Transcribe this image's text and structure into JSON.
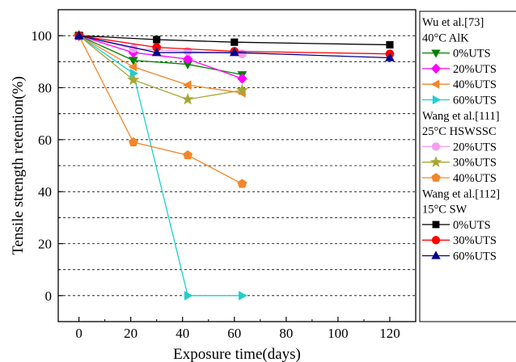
{
  "chart_data": {
    "type": "line",
    "xlabel": "Exposure time(days)",
    "ylabel": "Tensile strength retention(%)",
    "xlim": [
      -8,
      130
    ],
    "ylim": [
      -10,
      110
    ],
    "xticks": [
      0,
      20,
      40,
      60,
      80,
      100,
      120
    ],
    "yticks": [
      0,
      20,
      40,
      60,
      80,
      100
    ],
    "grid": "horizontal dashed",
    "legend_position": "right, outside plot",
    "groups": [
      {
        "title": [
          "Wu et al.[73]",
          "40°C AlK"
        ],
        "series": [
          {
            "name": "0%UTS",
            "color": "#008000",
            "marker": "triangle-down",
            "x": [
              0,
              21,
              42,
              63
            ],
            "y": [
              100,
              90.5,
              89,
              85
            ]
          },
          {
            "name": "20%UTS",
            "color": "#ff00ff",
            "marker": "diamond",
            "x": [
              0,
              21,
              42,
              63
            ],
            "y": [
              100,
              93.5,
              91,
              83.5
            ]
          },
          {
            "name": "40%UTS",
            "color": "#f4862a",
            "marker": "triangle-left",
            "x": [
              0,
              21,
              42,
              63
            ],
            "y": [
              100,
              88,
              81,
              78
            ]
          },
          {
            "name": "60%UTS",
            "color": "#1fcfcf",
            "marker": "triangle-right",
            "x": [
              0,
              21,
              42,
              63
            ],
            "y": [
              100,
              85.5,
              0,
              0
            ]
          }
        ]
      },
      {
        "title": [
          "Wang et al.[111]",
          "25°C HSWSSC"
        ],
        "series": [
          {
            "name": "20%UTS",
            "color": "#f49cf4",
            "marker": "circle",
            "x": [
              0,
              21,
              42,
              63
            ],
            "y": [
              100,
              95,
              94,
              93
            ]
          },
          {
            "name": "30%UTS",
            "color": "#a6a632",
            "marker": "star",
            "x": [
              0,
              21,
              42,
              63
            ],
            "y": [
              100,
              83,
              75.5,
              79
            ]
          },
          {
            "name": "40%UTS",
            "color": "#f4862a",
            "marker": "pentagon",
            "x": [
              0,
              21,
              42,
              63
            ],
            "y": [
              100,
              59,
              54,
              43
            ]
          }
        ]
      },
      {
        "title": [
          "Wang et al.[112]",
          "15°C SW"
        ],
        "series": [
          {
            "name": "0%UTS",
            "color": "#000000",
            "marker": "square",
            "x": [
              0,
              30,
              60,
              120
            ],
            "y": [
              100,
              98.5,
              97.5,
              96.5
            ]
          },
          {
            "name": "30%UTS",
            "color": "#ff0000",
            "marker": "circle",
            "x": [
              0,
              30,
              60,
              120
            ],
            "y": [
              100,
              95.5,
              94,
              93
            ]
          },
          {
            "name": "60%UTS",
            "color": "#00008b",
            "marker": "triangle-up",
            "x": [
              0,
              30,
              60,
              120
            ],
            "y": [
              100,
              93.5,
              93.5,
              91.5
            ]
          }
        ]
      }
    ]
  }
}
